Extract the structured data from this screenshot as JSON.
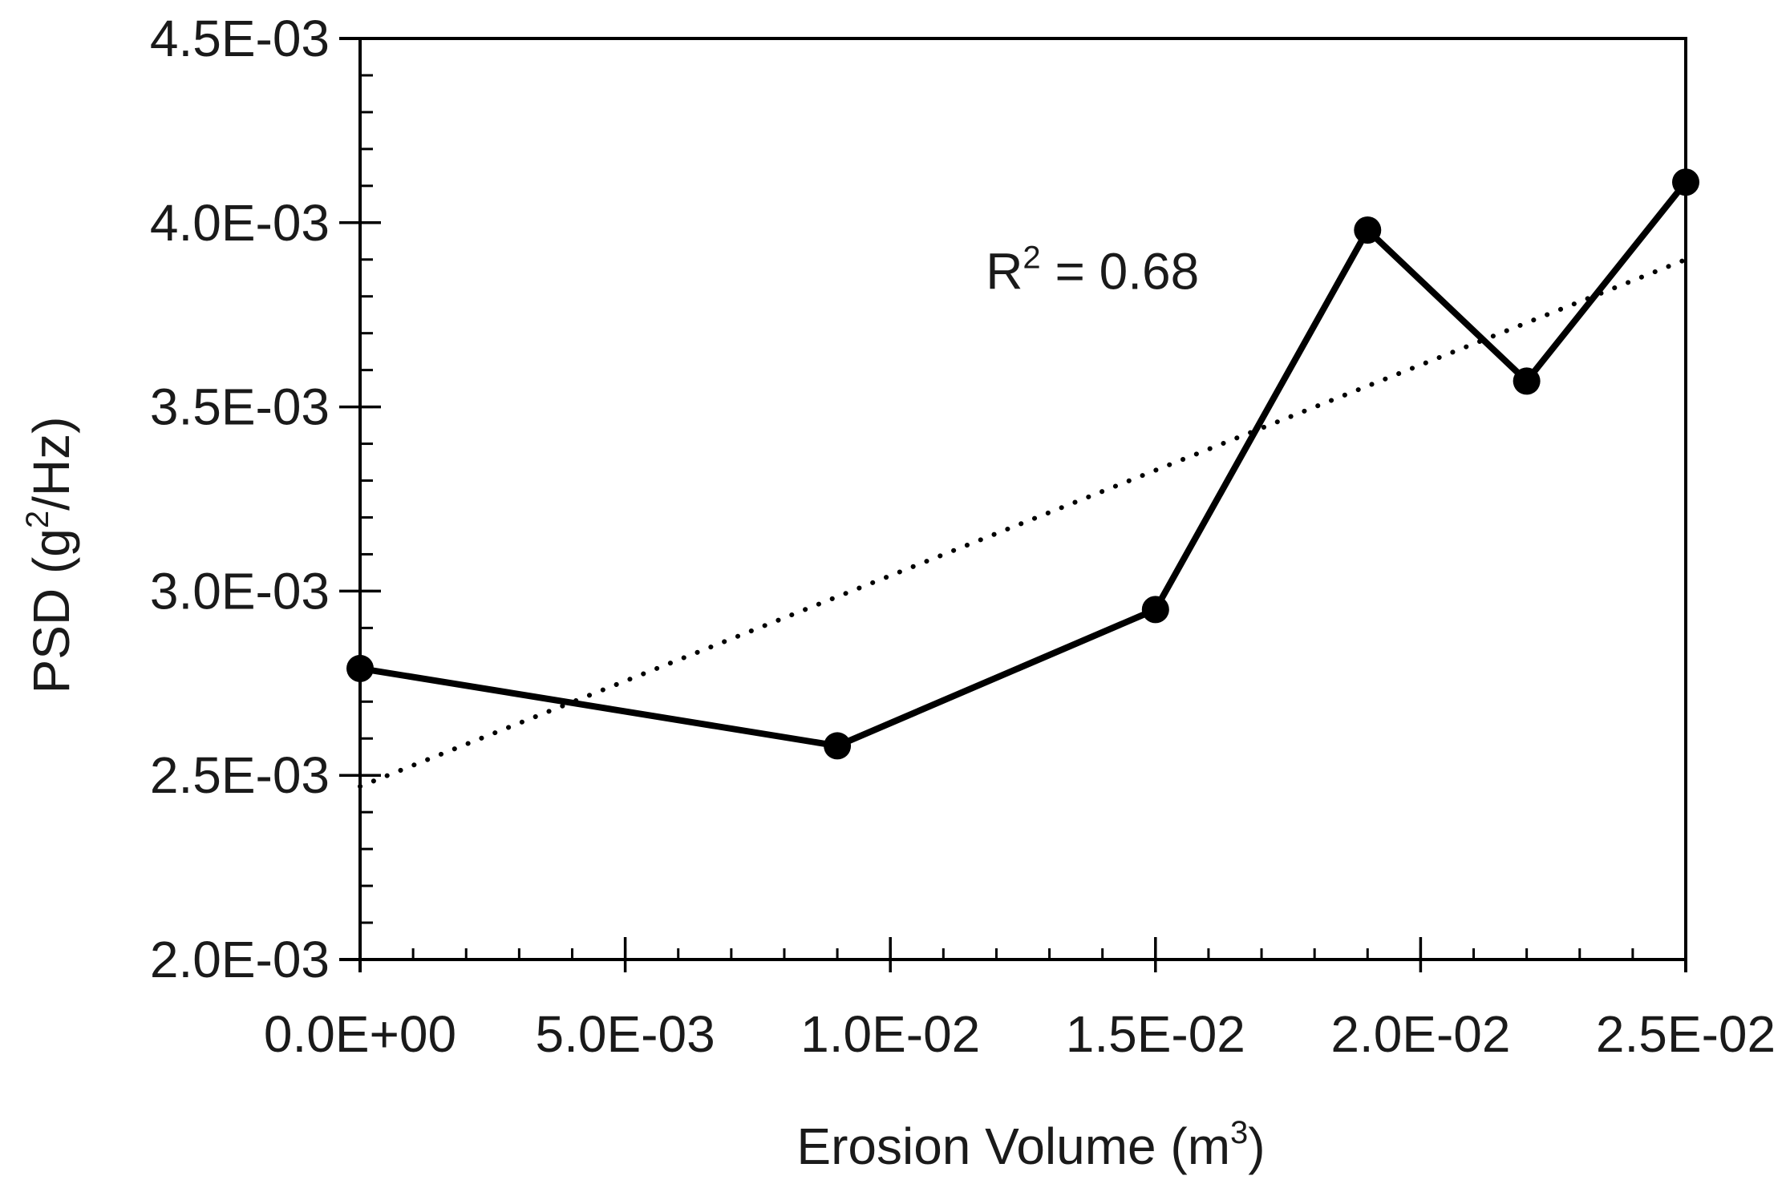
{
  "chart_data": {
    "type": "line",
    "title": "",
    "xlabel": "Erosion Volume (m",
    "xlabel_sup": "3",
    "xlabel_end": ")",
    "ylabel_prefix": "PSD (g",
    "ylabel_sup": "2",
    "ylabel_suffix": "/Hz)",
    "xlim": [
      0,
      0.025
    ],
    "ylim": [
      0.002,
      0.0045
    ],
    "x_ticks": [
      0,
      0.005,
      0.01,
      0.015,
      0.02,
      0.025
    ],
    "x_tick_labels": [
      "0.0E+00",
      "5.0E-03",
      "1.0E-02",
      "1.5E-02",
      "2.0E-02",
      "2.5E-02"
    ],
    "y_ticks": [
      0.002,
      0.0025,
      0.003,
      0.0035,
      0.004,
      0.0045
    ],
    "y_tick_labels": [
      "2.0E-03",
      "2.5E-03",
      "3.0E-03",
      "3.5E-03",
      "4.0E-03",
      "4.5E-03"
    ],
    "x_minor_step": 0.001,
    "y_minor_step": 0.0001,
    "grid": false,
    "legend": "none",
    "series": [
      {
        "name": "PSD",
        "style": "solid-markers",
        "color": "#000000",
        "x": [
          0,
          0.009,
          0.015,
          0.019,
          0.022,
          0.025
        ],
        "y": [
          0.00279,
          0.00258,
          0.00295,
          0.00398,
          0.00357,
          0.00411
        ]
      },
      {
        "name": "Linear trend",
        "style": "dotted",
        "color": "#000000",
        "x": [
          0,
          0.025
        ],
        "y": [
          0.00247,
          0.0039
        ]
      }
    ],
    "annotation": {
      "prefix": "R",
      "sup": "2",
      "suffix": " = 0.68",
      "x": 0.0118,
      "y": 0.00382
    }
  }
}
